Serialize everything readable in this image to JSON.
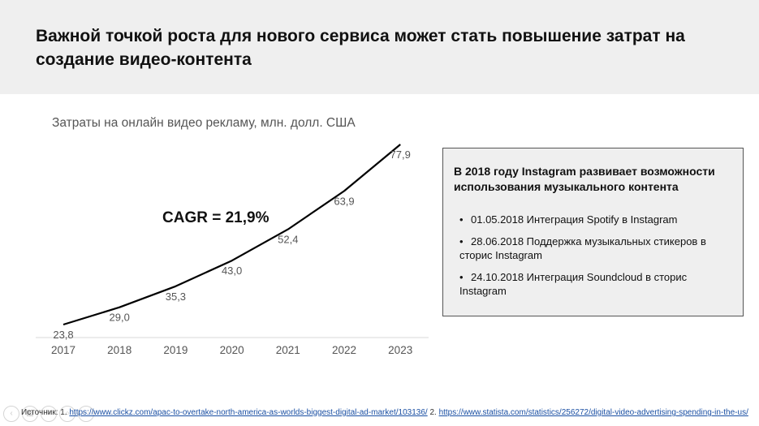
{
  "header": {
    "title": "Важной точкой роста для нового сервиса может стать повышение затрат на создание видео-контента"
  },
  "chart_data": {
    "type": "line",
    "title": "Затраты на онлайн видео рекламу, млн. долл. США",
    "categories": [
      "2017",
      "2018",
      "2019",
      "2020",
      "2021",
      "2022",
      "2023"
    ],
    "series": [
      {
        "values": [
          23.8,
          29.0,
          35.3,
          43.0,
          52.4,
          63.9,
          77.9
        ]
      }
    ],
    "data_labels": [
      "23,8",
      "29,0",
      "35,3",
      "43,0",
      "52,4",
      "63,9",
      "77,9"
    ],
    "annotation": "CAGR = 21,9%",
    "ylim": [
      23.8,
      77.9
    ],
    "grid": false,
    "color": "#000000"
  },
  "infobox": {
    "heading": "В 2018 году Instagram развивает возможности использования музыкального контента",
    "bullet_symbol": "•",
    "items": [
      "01.05.2018 Интеграция Spotify в Instagram",
      "28.06.2018 Поддержка музыкальных стикеров в сторис Instagram",
      "24.10.2018 Интеграция Soundcloud в сторис Instagram"
    ]
  },
  "source": {
    "prefix": "Источник: 1.",
    "link1": "https://www.clickz.com/apac-to-overtake-north-america-as-worlds-biggest-digital-ad-market/103136/",
    "middle": "2.",
    "link2": "https://www.statista.com/statistics/256272/digital-video-advertising-spending-in-the-us/"
  },
  "nav": {
    "icons": [
      "prev-icon",
      "grid-icon",
      "edit-icon",
      "zoom-icon",
      "more-icon"
    ],
    "glyphs": [
      "‹",
      "▦",
      "✎",
      "⌕",
      "⋯"
    ]
  }
}
